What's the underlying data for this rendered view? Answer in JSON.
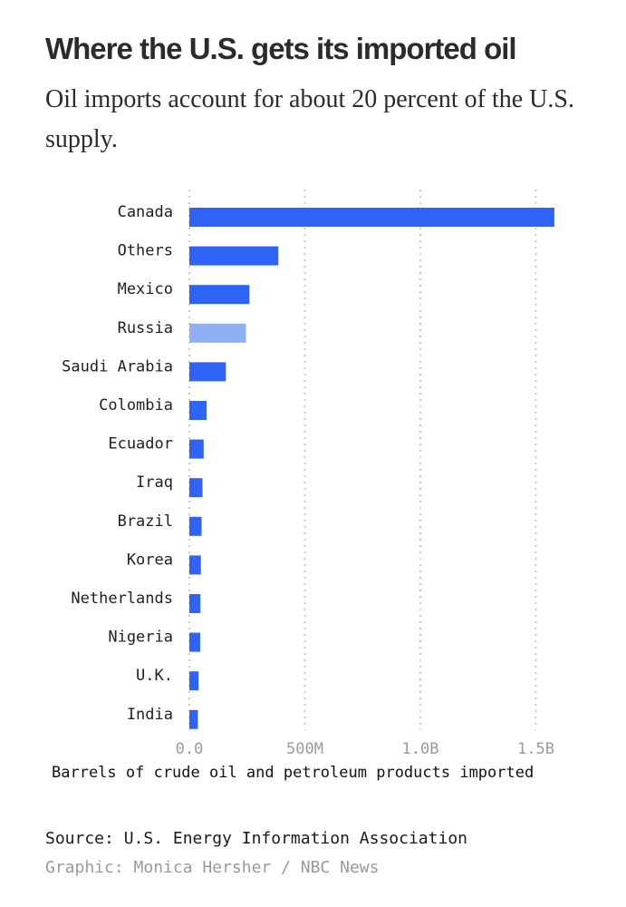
{
  "header": {
    "title": "Where the U.S. gets its imported oil",
    "subtitle": "Oil imports account for about 20 percent of the U.S. supply."
  },
  "footer": {
    "source": "Source: U.S. Energy Information Association",
    "credit": "Graphic: Monica Hersher / NBC News"
  },
  "colors": {
    "bar": "#2f63f5",
    "highlight": "#8fb0f2",
    "grid": "#c8c8c8"
  },
  "chart_data": {
    "type": "bar",
    "orientation": "horizontal",
    "categories": [
      "Canada",
      "Others",
      "Mexico",
      "Russia",
      "Saudi Arabia",
      "Colombia",
      "Ecuador",
      "Iraq",
      "Brazil",
      "Korea",
      "Netherlands",
      "Nigeria",
      "U.K.",
      "India"
    ],
    "values": [
      1580000000,
      385000000,
      260000000,
      245000000,
      158000000,
      75000000,
      62000000,
      57000000,
      53000000,
      50000000,
      48000000,
      47000000,
      40000000,
      37000000
    ],
    "highlighted": [
      "Russia"
    ],
    "xlabel": "Barrels of crude oil and petroleum products imported",
    "xlim": [
      0,
      1600000000
    ],
    "ticks": [
      0,
      500000000,
      1000000000,
      1500000000
    ],
    "tick_labels": [
      "0.0",
      "500M",
      "1.0B",
      "1.5B"
    ],
    "grid": "vertical dotted"
  }
}
